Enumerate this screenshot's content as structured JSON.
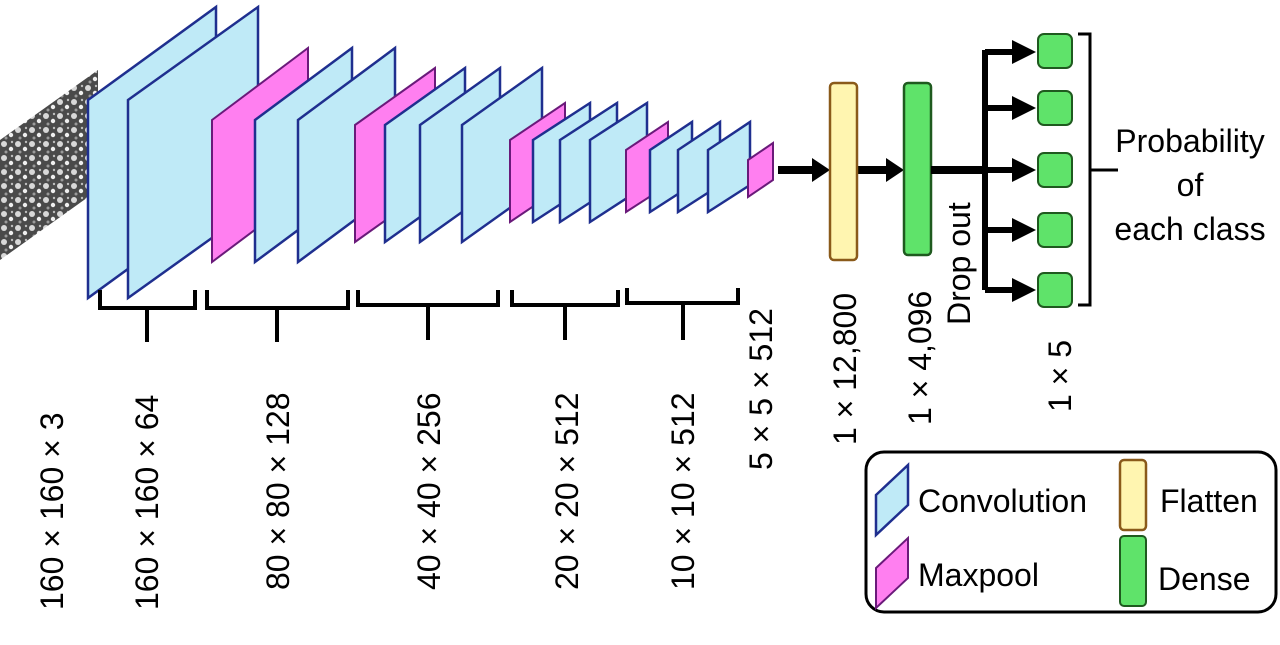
{
  "colors": {
    "convolution_fill": "#bfeaf7",
    "convolution_stroke": "#1f2f8f",
    "maxpool_fill": "#ff7ff0",
    "maxpool_stroke": "#6a1a7a",
    "flatten_fill": "#fff5b0",
    "flatten_stroke": "#8a5a1a",
    "dense_fill": "#5fe36a",
    "dense_stroke": "#1f5a1f"
  },
  "input_image": {
    "icon": "microscopy-image-icon"
  },
  "dimension_labels": {
    "input": "160 × 160 × 3",
    "block1": "160 × 160 × 64",
    "block2": "80 × 80 × 128",
    "block3": "40 × 40 × 256",
    "block4": "20 × 20 × 512",
    "block5": "10 × 10 × 512",
    "final_pool": "5 × 5 × 512",
    "flatten": "1 × 12,800",
    "dense": "1 × 4,096",
    "output": "1 × 5"
  },
  "dropout_label": "Drop out",
  "probability_label": [
    "Probability",
    "of",
    "each class"
  ],
  "legend": {
    "convolution": "Convolution",
    "maxpool": "Maxpool",
    "flatten": "Flatten",
    "dense": "Dense"
  }
}
